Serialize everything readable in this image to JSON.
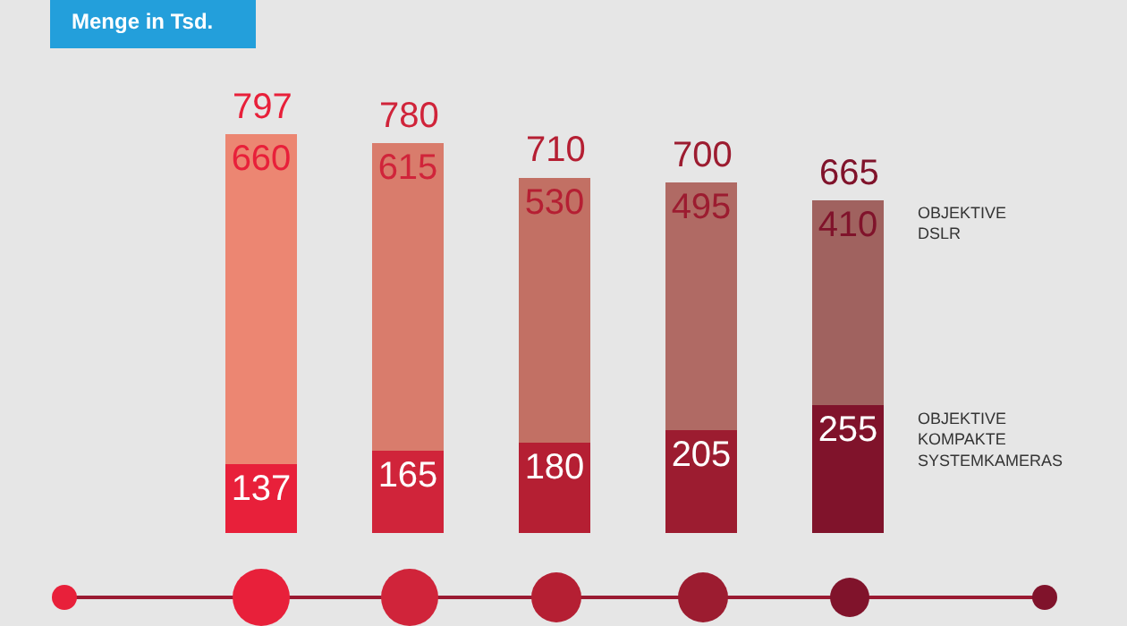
{
  "chart_data": {
    "type": "bar",
    "title": "Menge in Tsd.",
    "stacked": true,
    "data_labels": true,
    "legend": false,
    "categories": [
      null,
      null,
      null,
      null,
      null
    ],
    "series": [
      {
        "name": "OBJEKTIVE KOMPAKTE SYSTEMKAMERAS",
        "colors": [
          "#e8203a",
          "#d0243a",
          "#b51f33",
          "#9c1c30",
          "#80132b"
        ],
        "values": [
          137,
          165,
          180,
          205,
          255
        ]
      },
      {
        "name": "OBJEKTIVE DSLR",
        "colors": [
          "#ec8672",
          "#d97c6c",
          "#c27064",
          "#b06a64",
          "#a0625f"
        ],
        "values": [
          660,
          615,
          530,
          495,
          410
        ]
      }
    ],
    "totals": [
      "797",
      "780",
      "710",
      "700",
      "665"
    ]
  }
}
